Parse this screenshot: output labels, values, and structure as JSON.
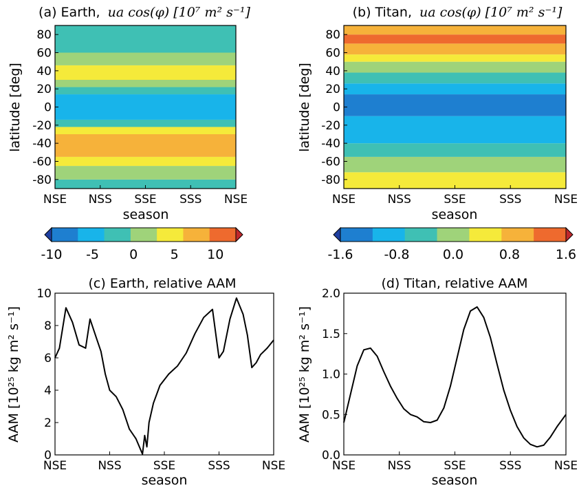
{
  "colors": {
    "levels": [
      "#1f3fa0",
      "#1e7fd0",
      "#18b4ea",
      "#3fc0b4",
      "#9fd37a",
      "#f5ea3a",
      "#f6b23a",
      "#ee6a2e",
      "#c0282c"
    ],
    "line": "#000000"
  },
  "chart_data": [
    {
      "id": "a",
      "type": "heatmap",
      "title_prefix": "(a) Earth,",
      "title_math": "ua cos(φ) [10⁷ m² s⁻¹]",
      "xlabel": "season",
      "ylabel": "latitude [deg]",
      "x_ticks": [
        "NSE",
        "NSS",
        "SSE",
        "SSS",
        "NSE"
      ],
      "y_ticks": [
        80,
        60,
        40,
        20,
        0,
        -20,
        -40,
        -60,
        -80
      ],
      "ylim": [
        -90,
        90
      ],
      "colorbar": {
        "ticks": [
          "-10",
          "-5",
          "0",
          "5",
          "10"
        ],
        "levels": [
          -10,
          -7.5,
          -5,
          -2.5,
          0,
          2.5,
          5,
          7.5,
          10,
          12.5
        ]
      },
      "bands": [
        {
          "lat": [
            -90,
            -80
          ],
          "level": 3
        },
        {
          "lat": [
            -80,
            -65
          ],
          "level": 4
        },
        {
          "lat": [
            -65,
            -55
          ],
          "level": 5
        },
        {
          "lat": [
            -55,
            -30
          ],
          "level": 6
        },
        {
          "lat": [
            -30,
            -22
          ],
          "level": 5
        },
        {
          "lat": [
            -22,
            -14
          ],
          "level": 3
        },
        {
          "lat": [
            -14,
            14
          ],
          "level": 2
        },
        {
          "lat": [
            14,
            22
          ],
          "level": 3
        },
        {
          "lat": [
            22,
            30
          ],
          "level": 4
        },
        {
          "lat": [
            30,
            46
          ],
          "level": 5
        },
        {
          "lat": [
            46,
            60
          ],
          "level": 4
        },
        {
          "lat": [
            60,
            90
          ],
          "level": 3
        }
      ]
    },
    {
      "id": "b",
      "type": "heatmap",
      "title_prefix": "(b) Titan,",
      "title_math": "ua cos(φ) [10⁷ m² s⁻¹]",
      "xlabel": "season",
      "ylabel": "latitude [deg]",
      "x_ticks": [
        "NSE",
        "NSS",
        "SSE",
        "SSS",
        "NSE"
      ],
      "y_ticks": [
        80,
        60,
        40,
        20,
        0,
        -20,
        -40,
        -60,
        -80
      ],
      "ylim": [
        -90,
        90
      ],
      "colorbar": {
        "ticks": [
          "-1.6",
          "-0.8",
          "0.0",
          "0.8",
          "1.6"
        ],
        "levels": [
          -1.6,
          -1.2,
          -0.8,
          -0.4,
          0.0,
          0.4,
          0.8,
          1.2,
          1.6
        ]
      },
      "bands": [
        {
          "lat": [
            -90,
            -72
          ],
          "level": 5
        },
        {
          "lat": [
            -72,
            -55
          ],
          "level": 4
        },
        {
          "lat": [
            -55,
            -40
          ],
          "level": 3
        },
        {
          "lat": [
            -40,
            -10
          ],
          "level": 2
        },
        {
          "lat": [
            -10,
            14
          ],
          "level": 1
        },
        {
          "lat": [
            14,
            26
          ],
          "level": 2
        },
        {
          "lat": [
            26,
            38
          ],
          "level": 3
        },
        {
          "lat": [
            38,
            50
          ],
          "level": 4
        },
        {
          "lat": [
            50,
            58
          ],
          "level": 5
        },
        {
          "lat": [
            58,
            70
          ],
          "level": 6
        },
        {
          "lat": [
            70,
            80
          ],
          "level": 7
        },
        {
          "lat": [
            80,
            90
          ],
          "level": 6
        }
      ]
    },
    {
      "id": "c",
      "type": "line",
      "title": "(c) Earth, relative AAM",
      "xlabel": "season",
      "ylabel": "AAM [10²⁵ kg m² s⁻¹]",
      "x_ticks": [
        "NSE",
        "NSS",
        "SSE",
        "SSS",
        "NSE"
      ],
      "y_ticks": [
        "0",
        "2",
        "4",
        "6",
        "8",
        "10"
      ],
      "ylim": [
        0,
        10
      ],
      "x": [
        0,
        0.02,
        0.05,
        0.08,
        0.11,
        0.14,
        0.16,
        0.19,
        0.21,
        0.23,
        0.25,
        0.28,
        0.31,
        0.34,
        0.37,
        0.4,
        0.41,
        0.42,
        0.43,
        0.45,
        0.48,
        0.52,
        0.56,
        0.6,
        0.64,
        0.68,
        0.72,
        0.74,
        0.75,
        0.77,
        0.8,
        0.83,
        0.86,
        0.88,
        0.9,
        0.92,
        0.94,
        0.97,
        1.0
      ],
      "y": [
        6.0,
        6.6,
        9.1,
        8.2,
        6.8,
        6.6,
        8.4,
        7.2,
        6.4,
        5.0,
        4.0,
        3.6,
        2.8,
        1.6,
        1.0,
        0.05,
        1.2,
        0.5,
        2.0,
        3.2,
        4.3,
        5.0,
        5.5,
        6.3,
        7.5,
        8.5,
        9.0,
        7.0,
        6.0,
        6.4,
        8.4,
        9.7,
        8.7,
        7.4,
        5.4,
        5.7,
        6.2,
        6.6,
        7.1
      ]
    },
    {
      "id": "d",
      "type": "line",
      "title": "(d) Titan, relative AAM",
      "xlabel": "season",
      "ylabel": "AAM [10²⁵ kg m² s⁻¹]",
      "x_ticks": [
        "NSE",
        "NSS",
        "SSE",
        "SSS",
        "NSE"
      ],
      "y_ticks": [
        "0.0",
        "0.5",
        "1.0",
        "1.5",
        "2.0"
      ],
      "ylim": [
        0,
        2.0
      ],
      "x": [
        0,
        0.03,
        0.06,
        0.09,
        0.12,
        0.15,
        0.18,
        0.21,
        0.24,
        0.27,
        0.3,
        0.33,
        0.36,
        0.39,
        0.42,
        0.45,
        0.48,
        0.51,
        0.54,
        0.57,
        0.6,
        0.63,
        0.66,
        0.69,
        0.72,
        0.75,
        0.78,
        0.81,
        0.84,
        0.87,
        0.9,
        0.93,
        0.96,
        1.0
      ],
      "y": [
        0.4,
        0.75,
        1.1,
        1.3,
        1.32,
        1.22,
        1.03,
        0.85,
        0.7,
        0.57,
        0.5,
        0.47,
        0.41,
        0.4,
        0.43,
        0.58,
        0.85,
        1.2,
        1.55,
        1.78,
        1.83,
        1.7,
        1.45,
        1.12,
        0.8,
        0.55,
        0.35,
        0.21,
        0.13,
        0.1,
        0.12,
        0.22,
        0.35,
        0.5
      ]
    }
  ]
}
